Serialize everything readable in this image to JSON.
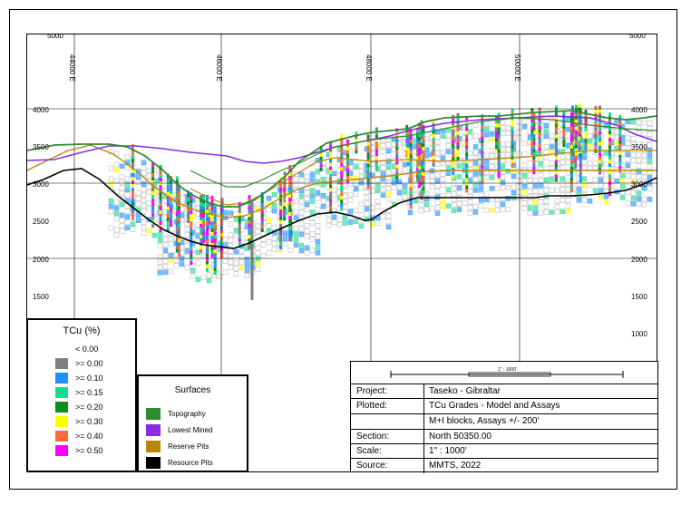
{
  "axes": {
    "left_elev_labels": [
      "4000",
      "3500",
      "3000",
      "2500",
      "2000",
      "1500"
    ],
    "right_elev_labels": [
      "4000",
      "3500",
      "3000",
      "2500",
      "2000",
      "1500",
      "1000"
    ],
    "easting_labels": [
      "44000 E",
      "46000 E",
      "48000 E",
      "50000 E"
    ],
    "top_partial_left": "5000",
    "top_partial_right": "5000"
  },
  "legend_tcu": {
    "title": "TCu  (%)",
    "items": [
      {
        "label": "<   0.00",
        "color": ""
      },
      {
        "label": ">=  0.00",
        "color": "#808080"
      },
      {
        "label": ">=  0.10",
        "color": "#1e90ff"
      },
      {
        "label": ">=  0.15",
        "color": "#1ad98c"
      },
      {
        "label": ">=  0.20",
        "color": "#0a8f1e"
      },
      {
        "label": ">=  0.30",
        "color": "#ffff00"
      },
      {
        "label": ">=  0.40",
        "color": "#ff6a3d"
      },
      {
        "label": ">=  0.50",
        "color": "#ff00ff"
      }
    ]
  },
  "legend_surfaces": {
    "title": "Surfaces",
    "items": [
      {
        "label": "Topography",
        "color": "#2e8b2e"
      },
      {
        "label": "Lowest Mined",
        "color": "#8a2be2"
      },
      {
        "label": "Reserve Pits",
        "color": "#b8860b"
      },
      {
        "label": "Resource Pits",
        "color": "#000000"
      }
    ]
  },
  "scale_bar": {
    "label": "1\" : 1000'"
  },
  "title_block": {
    "rows": [
      {
        "key": "Project:",
        "value": "Taseko  -  Gibraltar"
      },
      {
        "key": "Plotted:",
        "value": "TCu  Grades  -  Model  and  Assays"
      },
      {
        "key": "",
        "value": "M+I  blocks,  Assays  +/-  200'"
      },
      {
        "key": "Section:",
        "value": "North  50350.00"
      },
      {
        "key": "Scale:",
        "value": "1\"  :  1000'"
      },
      {
        "key": "Source:",
        "value": "MMTS,  2022"
      }
    ]
  }
}
